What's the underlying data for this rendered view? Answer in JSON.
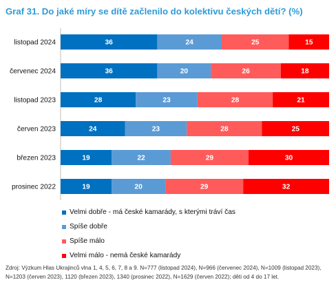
{
  "chart_data": {
    "type": "bar",
    "orientation": "horizontal",
    "stacked": true,
    "title": "Graf 31. Do jaké míry se dítě začlenilo do kolektivu českých dětí? (%)",
    "categories": [
      "listopad 2024",
      "červenec 2024",
      "listopad 2023",
      "červen 2023",
      "březen 2023",
      "prosinec 2022"
    ],
    "series": [
      {
        "name": "Velmi dobře - má české kamarády, s kterými tráví čas",
        "color": "#0070c0",
        "values": [
          36,
          36,
          28,
          24,
          19,
          19
        ]
      },
      {
        "name": "Spíše dobře",
        "color": "#5b9bd5",
        "values": [
          24,
          20,
          23,
          23,
          22,
          20
        ]
      },
      {
        "name": "Spíše málo",
        "color": "#ff5b5b",
        "values": [
          25,
          26,
          28,
          28,
          29,
          29
        ]
      },
      {
        "name": "Velmi málo - nemá české kamarády",
        "color": "#ff0000",
        "values": [
          15,
          18,
          21,
          25,
          30,
          32
        ]
      }
    ],
    "xlim": [
      0,
      100
    ],
    "grid": false,
    "legend_placement": "bottom-left"
  },
  "source_note": "Zdroj: Výzkum Hlas Ukrajinců vlna 1, 4, 5, 6, 7, 8 a 9. N=777 (listopad 2024), N=966 (červenec 2024), N=1009 (listopad 2023), N=1203 (červen 2023), 1120 (březen 2023), 1340 (prosinec 2022), N=1629 (červen 2022); děti od 4 do 17 let.",
  "colors": {
    "title": "#2e9bd6",
    "bar_label": "#ffffff"
  }
}
